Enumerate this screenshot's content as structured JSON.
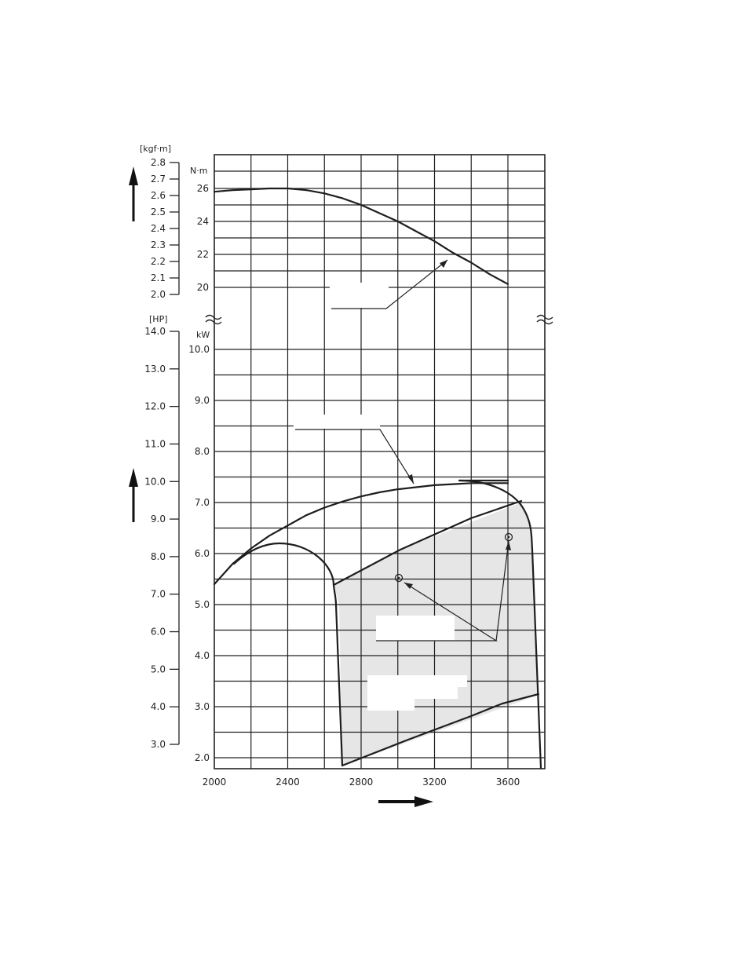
{
  "chart_data": {
    "type": "line",
    "x_ticks": [
      "2000",
      "2400",
      "2800",
      "3200",
      "3600"
    ],
    "xlim": [
      2000,
      3800
    ],
    "torque_axis": {
      "unit_nm": "N·m",
      "unit_kgf": "[kgf·m]",
      "nm_ticks": [
        "26",
        "24",
        "22",
        "20"
      ],
      "kgf_ticks": [
        "2.8",
        "2.7",
        "2.6",
        "2.5",
        "2.4",
        "2.3",
        "2.2",
        "2.1",
        "2.0"
      ],
      "ylim_nm": [
        19.6,
        27.4
      ]
    },
    "power_axis": {
      "unit_kw": "kW",
      "unit_hp": "[HP]",
      "kw_ticks": [
        "10.0",
        "9.0",
        "8.0",
        "7.0",
        "6.0",
        "5.0",
        "4.0",
        "3.0",
        "2.0"
      ],
      "hp_ticks": [
        "14.0",
        "13.0",
        "12.0",
        "11.0",
        "10.0",
        "9.0",
        "8.0",
        "7.0",
        "6.0",
        "5.0",
        "4.0",
        "3.0"
      ],
      "ylim_kw": [
        1.8,
        10.4
      ]
    },
    "series": [
      {
        "x": [
          2000,
          2100,
          2200,
          2300,
          2400,
          2500,
          2600,
          2700,
          2800,
          2900,
          3000,
          3100,
          3200,
          3300,
          3400,
          3500,
          3600
        ],
        "y": [
          25.8,
          25.9,
          25.95,
          26.0,
          26.0,
          25.9,
          25.7,
          25.4,
          25.0,
          24.5,
          24.0,
          23.4,
          22.8,
          22.1,
          21.5,
          20.8,
          20.2
        ]
      },
      {
        "x": [
          2000,
          2100,
          2200,
          2300,
          2400,
          2500,
          2600,
          2700,
          2800,
          2900,
          3000,
          3100,
          3200,
          3300,
          3400,
          3500,
          3600
        ],
        "y": [
          5.4,
          5.8,
          6.1,
          6.35,
          6.55,
          6.75,
          6.9,
          7.02,
          7.12,
          7.2,
          7.26,
          7.3,
          7.34,
          7.36,
          7.38,
          7.38,
          7.38
        ]
      }
    ]
  }
}
